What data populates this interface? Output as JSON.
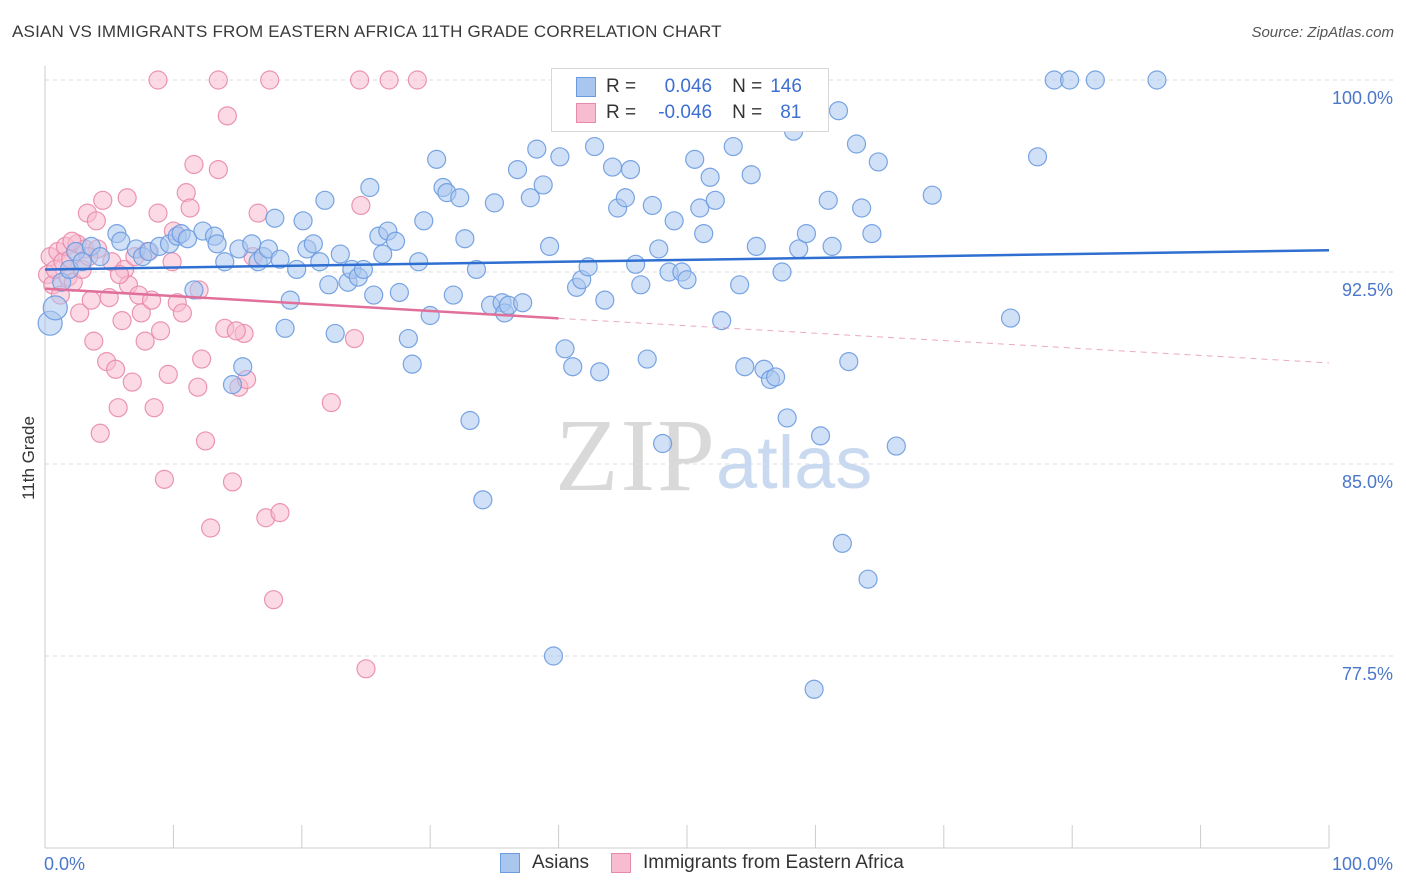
{
  "title": "ASIAN VS IMMIGRANTS FROM EASTERN AFRICA 11TH GRADE CORRELATION CHART",
  "source": "Source: ZipAtlas.com",
  "legend": {
    "rows": [
      {
        "r_label": "R =",
        "r_value": "0.046",
        "n_label": "N =",
        "n_value": "146"
      },
      {
        "r_label": "R =",
        "r_value": "-0.046",
        "n_label": "N =",
        "n_value": "81"
      }
    ]
  },
  "bottom_legend": [
    "Asians",
    "Immigrants from Eastern Africa"
  ],
  "colors": {
    "asian_fill": "#a9c6ef",
    "asian_stroke": "#6c9be0",
    "asian_line": "#2f6fd1",
    "africa_fill": "#f7bcd0",
    "africa_stroke": "#e98aab",
    "africa_line": "#e0709a",
    "tick_label": "#4a77c9"
  },
  "chart_data": {
    "type": "scatter",
    "title": "ASIAN VS IMMIGRANTS FROM EASTERN AFRICA 11TH GRADE CORRELATION CHART",
    "xlabel": "",
    "ylabel": "11th Grade",
    "xlim": [
      0,
      100
    ],
    "ylim": [
      70.0,
      101.0
    ],
    "x_tick_labels": [
      "0.0%",
      "100.0%"
    ],
    "y_ticks": [
      77.5,
      85.0,
      92.5,
      100.0
    ],
    "y_tick_labels": [
      "77.5%",
      "85.0%",
      "92.5%",
      "100.0%"
    ],
    "grid": true,
    "legend_position": "top-center",
    "series": [
      {
        "name": "Asians",
        "r": 0.046,
        "n": 146,
        "trend": {
          "x": [
            0,
            100
          ],
          "y": [
            92.6,
            93.35
          ],
          "solid_until": 100
        },
        "points": [
          [
            0.4,
            90.5
          ],
          [
            0.8,
            91.1
          ],
          [
            1.3,
            92.1
          ],
          [
            1.9,
            92.6
          ],
          [
            2.4,
            93.3
          ],
          [
            2.9,
            92.9
          ],
          [
            3.6,
            93.5
          ],
          [
            4.3,
            93.1
          ],
          [
            5.6,
            94.0
          ],
          [
            5.9,
            93.7
          ],
          [
            7.1,
            93.4
          ],
          [
            7.6,
            93.1
          ],
          [
            8.1,
            93.3
          ],
          [
            8.9,
            93.5
          ],
          [
            9.7,
            93.6
          ],
          [
            10.3,
            93.9
          ],
          [
            10.6,
            94.0
          ],
          [
            11.1,
            93.8
          ],
          [
            11.6,
            91.8
          ],
          [
            12.3,
            94.1
          ],
          [
            13.2,
            93.9
          ],
          [
            13.4,
            93.6
          ],
          [
            14.0,
            92.9
          ],
          [
            14.6,
            88.1
          ],
          [
            15.1,
            93.4
          ],
          [
            15.4,
            88.8
          ],
          [
            16.1,
            93.6
          ],
          [
            16.6,
            92.9
          ],
          [
            17.0,
            93.1
          ],
          [
            17.4,
            93.4
          ],
          [
            17.9,
            94.6
          ],
          [
            18.3,
            93.0
          ],
          [
            18.7,
            90.3
          ],
          [
            19.1,
            91.4
          ],
          [
            19.6,
            92.6
          ],
          [
            20.1,
            94.5
          ],
          [
            20.4,
            93.4
          ],
          [
            20.9,
            93.6
          ],
          [
            21.4,
            92.9
          ],
          [
            21.8,
            95.3
          ],
          [
            22.1,
            92.0
          ],
          [
            22.6,
            90.1
          ],
          [
            23.0,
            93.2
          ],
          [
            23.6,
            92.1
          ],
          [
            23.9,
            92.6
          ],
          [
            24.4,
            92.3
          ],
          [
            24.8,
            92.6
          ],
          [
            25.3,
            95.8
          ],
          [
            25.6,
            91.6
          ],
          [
            26.0,
            93.9
          ],
          [
            26.3,
            93.2
          ],
          [
            26.7,
            94.1
          ],
          [
            27.3,
            93.7
          ],
          [
            27.6,
            91.7
          ],
          [
            28.3,
            89.9
          ],
          [
            28.6,
            88.9
          ],
          [
            29.1,
            92.9
          ],
          [
            29.5,
            94.5
          ],
          [
            30.0,
            90.8
          ],
          [
            30.5,
            96.9
          ],
          [
            31.0,
            95.8
          ],
          [
            31.3,
            95.6
          ],
          [
            31.8,
            91.6
          ],
          [
            32.3,
            95.4
          ],
          [
            32.7,
            93.8
          ],
          [
            33.1,
            86.7
          ],
          [
            33.6,
            92.6
          ],
          [
            34.1,
            83.6
          ],
          [
            34.7,
            91.2
          ],
          [
            35.0,
            95.2
          ],
          [
            35.6,
            91.3
          ],
          [
            35.8,
            90.9
          ],
          [
            36.1,
            91.2
          ],
          [
            36.8,
            96.5
          ],
          [
            37.2,
            91.3
          ],
          [
            37.8,
            95.4
          ],
          [
            38.3,
            97.3
          ],
          [
            38.8,
            95.9
          ],
          [
            39.3,
            93.5
          ],
          [
            39.6,
            77.5
          ],
          [
            40.1,
            97.0
          ],
          [
            40.5,
            89.5
          ],
          [
            41.1,
            88.8
          ],
          [
            41.4,
            91.9
          ],
          [
            41.8,
            92.2
          ],
          [
            42.3,
            92.7
          ],
          [
            42.8,
            97.4
          ],
          [
            43.2,
            88.6
          ],
          [
            43.6,
            91.4
          ],
          [
            44.2,
            96.6
          ],
          [
            44.6,
            95.0
          ],
          [
            45.2,
            95.4
          ],
          [
            45.6,
            96.5
          ],
          [
            46.0,
            92.8
          ],
          [
            46.4,
            92.0
          ],
          [
            46.9,
            89.1
          ],
          [
            47.3,
            95.1
          ],
          [
            47.8,
            93.4
          ],
          [
            48.1,
            85.8
          ],
          [
            48.6,
            92.5
          ],
          [
            49.0,
            94.5
          ],
          [
            49.6,
            92.5
          ],
          [
            50.0,
            92.2
          ],
          [
            50.6,
            96.9
          ],
          [
            51.0,
            95.0
          ],
          [
            51.3,
            94.0
          ],
          [
            51.8,
            96.2
          ],
          [
            52.2,
            95.3
          ],
          [
            52.7,
            90.6
          ],
          [
            53.1,
            98.6
          ],
          [
            53.6,
            97.4
          ],
          [
            54.1,
            92.0
          ],
          [
            54.5,
            88.8
          ],
          [
            55.0,
            96.3
          ],
          [
            55.4,
            93.5
          ],
          [
            56.0,
            88.7
          ],
          [
            56.5,
            88.3
          ],
          [
            56.9,
            88.4
          ],
          [
            57.4,
            92.5
          ],
          [
            57.8,
            86.8
          ],
          [
            58.3,
            98.0
          ],
          [
            58.7,
            93.4
          ],
          [
            59.3,
            94.0
          ],
          [
            59.9,
            76.2
          ],
          [
            60.4,
            86.1
          ],
          [
            61.0,
            95.3
          ],
          [
            61.3,
            93.5
          ],
          [
            61.8,
            98.8
          ],
          [
            62.1,
            81.9
          ],
          [
            62.6,
            89.0
          ],
          [
            63.2,
            97.5
          ],
          [
            63.6,
            95.0
          ],
          [
            64.1,
            80.5
          ],
          [
            64.4,
            94.0
          ],
          [
            64.9,
            96.8
          ],
          [
            66.3,
            85.7
          ],
          [
            69.1,
            95.5
          ],
          [
            75.2,
            90.7
          ],
          [
            77.3,
            97.0
          ],
          [
            78.6,
            100.0
          ],
          [
            79.8,
            100.0
          ],
          [
            81.8,
            100.0
          ],
          [
            86.6,
            100.0
          ]
        ]
      },
      {
        "name": "Immigrants from Eastern Africa",
        "r": -0.046,
        "n": 81,
        "trend": {
          "x": [
            0,
            100
          ],
          "y": [
            91.85,
            88.95
          ],
          "solid_until": 40
        },
        "points": [
          [
            0.2,
            92.4
          ],
          [
            0.4,
            93.1
          ],
          [
            0.6,
            92.0
          ],
          [
            0.8,
            92.6
          ],
          [
            1.0,
            93.3
          ],
          [
            1.2,
            91.6
          ],
          [
            1.4,
            92.9
          ],
          [
            1.6,
            93.5
          ],
          [
            1.8,
            92.3
          ],
          [
            2.0,
            93.0
          ],
          [
            2.2,
            92.1
          ],
          [
            2.5,
            93.6
          ],
          [
            2.7,
            90.9
          ],
          [
            2.9,
            92.6
          ],
          [
            3.1,
            93.4
          ],
          [
            3.3,
            94.8
          ],
          [
            3.6,
            91.4
          ],
          [
            3.8,
            89.8
          ],
          [
            4.0,
            94.5
          ],
          [
            4.3,
            86.2
          ],
          [
            4.5,
            95.3
          ],
          [
            4.8,
            89.0
          ],
          [
            5.0,
            91.5
          ],
          [
            5.2,
            92.9
          ],
          [
            5.5,
            88.7
          ],
          [
            5.7,
            87.2
          ],
          [
            6.0,
            90.6
          ],
          [
            6.2,
            92.6
          ],
          [
            6.5,
            92.0
          ],
          [
            6.8,
            88.2
          ],
          [
            7.0,
            93.1
          ],
          [
            7.3,
            91.6
          ],
          [
            7.5,
            90.9
          ],
          [
            7.8,
            89.8
          ],
          [
            8.0,
            93.3
          ],
          [
            8.3,
            91.4
          ],
          [
            8.5,
            87.2
          ],
          [
            8.8,
            94.8
          ],
          [
            9.0,
            90.2
          ],
          [
            9.3,
            84.4
          ],
          [
            9.6,
            88.5
          ],
          [
            9.9,
            92.9
          ],
          [
            10.3,
            91.3
          ],
          [
            10.7,
            90.9
          ],
          [
            11.0,
            95.6
          ],
          [
            11.3,
            95.0
          ],
          [
            11.6,
            96.7
          ],
          [
            11.9,
            88.0
          ],
          [
            12.2,
            89.1
          ],
          [
            12.5,
            85.9
          ],
          [
            12.9,
            82.5
          ],
          [
            13.5,
            96.5
          ],
          [
            14.0,
            90.3
          ],
          [
            14.6,
            84.3
          ],
          [
            15.1,
            88.0
          ],
          [
            15.7,
            88.3
          ],
          [
            16.2,
            93.1
          ],
          [
            16.6,
            94.8
          ],
          [
            17.2,
            82.9
          ],
          [
            17.8,
            79.7
          ],
          [
            18.3,
            83.1
          ],
          [
            22.3,
            87.4
          ],
          [
            24.1,
            89.9
          ],
          [
            24.6,
            95.1
          ],
          [
            25.0,
            77.0
          ],
          [
            8.8,
            100.0
          ],
          [
            13.5,
            100.0
          ],
          [
            14.2,
            98.6
          ],
          [
            17.5,
            100.0
          ],
          [
            24.5,
            100.0
          ],
          [
            26.8,
            100.0
          ],
          [
            29.0,
            100.0
          ],
          [
            15.5,
            90.1
          ],
          [
            12.0,
            91.8
          ],
          [
            4.1,
            93.4
          ],
          [
            3.4,
            93.1
          ],
          [
            6.4,
            95.4
          ],
          [
            2.1,
            93.7
          ],
          [
            10.0,
            94.1
          ],
          [
            14.9,
            90.2
          ],
          [
            5.8,
            92.4
          ]
        ]
      }
    ]
  }
}
